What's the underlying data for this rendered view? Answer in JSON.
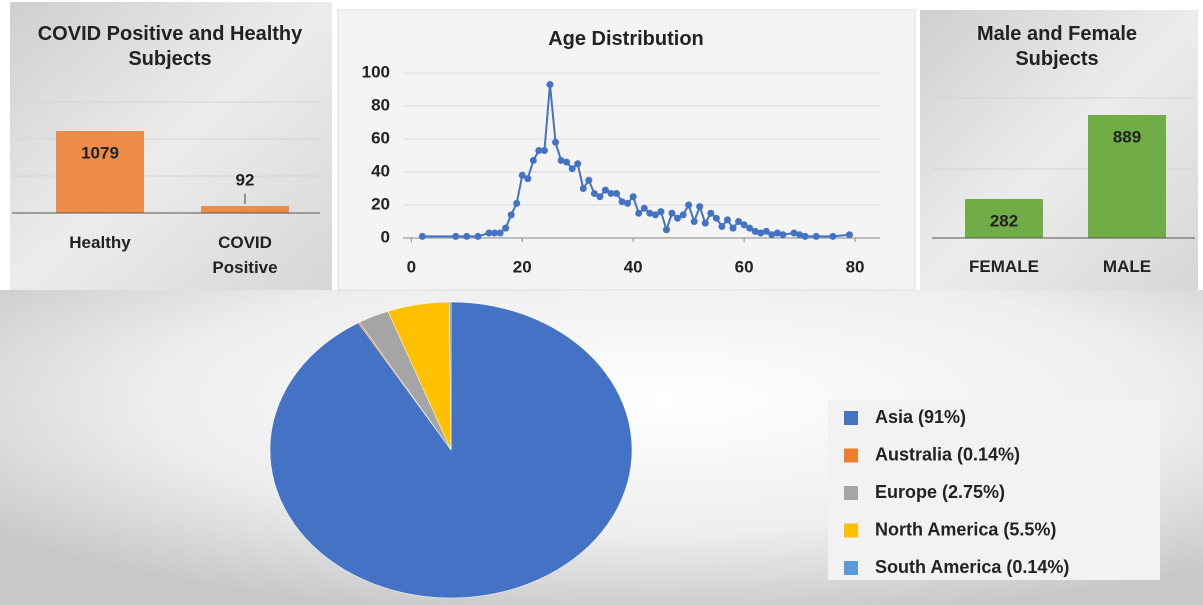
{
  "chart_data": [
    {
      "type": "bar",
      "title": "COVID Positive and Healthy Subjects",
      "categories": [
        "Healthy",
        "COVID Positive"
      ],
      "values": [
        1079,
        92
      ],
      "color": "#ed8c48"
    },
    {
      "type": "line",
      "title": "Age Distribution",
      "color": "#4472c4",
      "x": [
        2,
        8,
        10,
        12,
        14,
        15,
        16,
        17,
        18,
        19,
        20,
        21,
        22,
        23,
        24,
        25,
        26,
        27,
        28,
        29,
        30,
        31,
        32,
        33,
        34,
        35,
        36,
        37,
        38,
        39,
        40,
        41,
        42,
        43,
        44,
        45,
        46,
        47,
        48,
        49,
        50,
        51,
        52,
        53,
        54,
        55,
        56,
        57,
        58,
        59,
        60,
        61,
        62,
        63,
        64,
        65,
        66,
        67,
        69,
        70,
        71,
        73,
        76,
        79
      ],
      "values": [
        1,
        1,
        1,
        1,
        3,
        3,
        3,
        6,
        14,
        21,
        38,
        36,
        47,
        53,
        53,
        93,
        58,
        47,
        46,
        42,
        45,
        30,
        35,
        27,
        25,
        29,
        27,
        27,
        22,
        21,
        25,
        15,
        18,
        15,
        14,
        16,
        5,
        15,
        12,
        14,
        20,
        10,
        19,
        9,
        15,
        12,
        7,
        11,
        6,
        10,
        8,
        6,
        4,
        3,
        4,
        2,
        3,
        2,
        3,
        2,
        1,
        1,
        1,
        2
      ],
      "xlim": [
        -1.5,
        84.5
      ],
      "xticks": [
        0,
        20,
        40,
        60,
        80
      ],
      "ylim": [
        0,
        100
      ],
      "yticks": [
        0,
        20,
        40,
        60,
        80,
        100
      ],
      "grid": true
    },
    {
      "type": "bar",
      "title": "Male and Female Subjects",
      "categories": [
        "FEMALE",
        "MALE"
      ],
      "values": [
        282,
        889
      ],
      "color": "#70ad47"
    },
    {
      "type": "pie",
      "categories": [
        "Asia (91%)",
        "Australia (0.14%)",
        "Europe (2.75%)",
        "North America (5.5%)",
        "South America (0.14%)"
      ],
      "values": [
        91,
        0.14,
        2.75,
        5.5,
        0.14
      ],
      "colors": [
        "#4472c4",
        "#ed7d31",
        "#a5a5a5",
        "#ffc000",
        "#5b9bd5"
      ],
      "legend": "right"
    }
  ]
}
